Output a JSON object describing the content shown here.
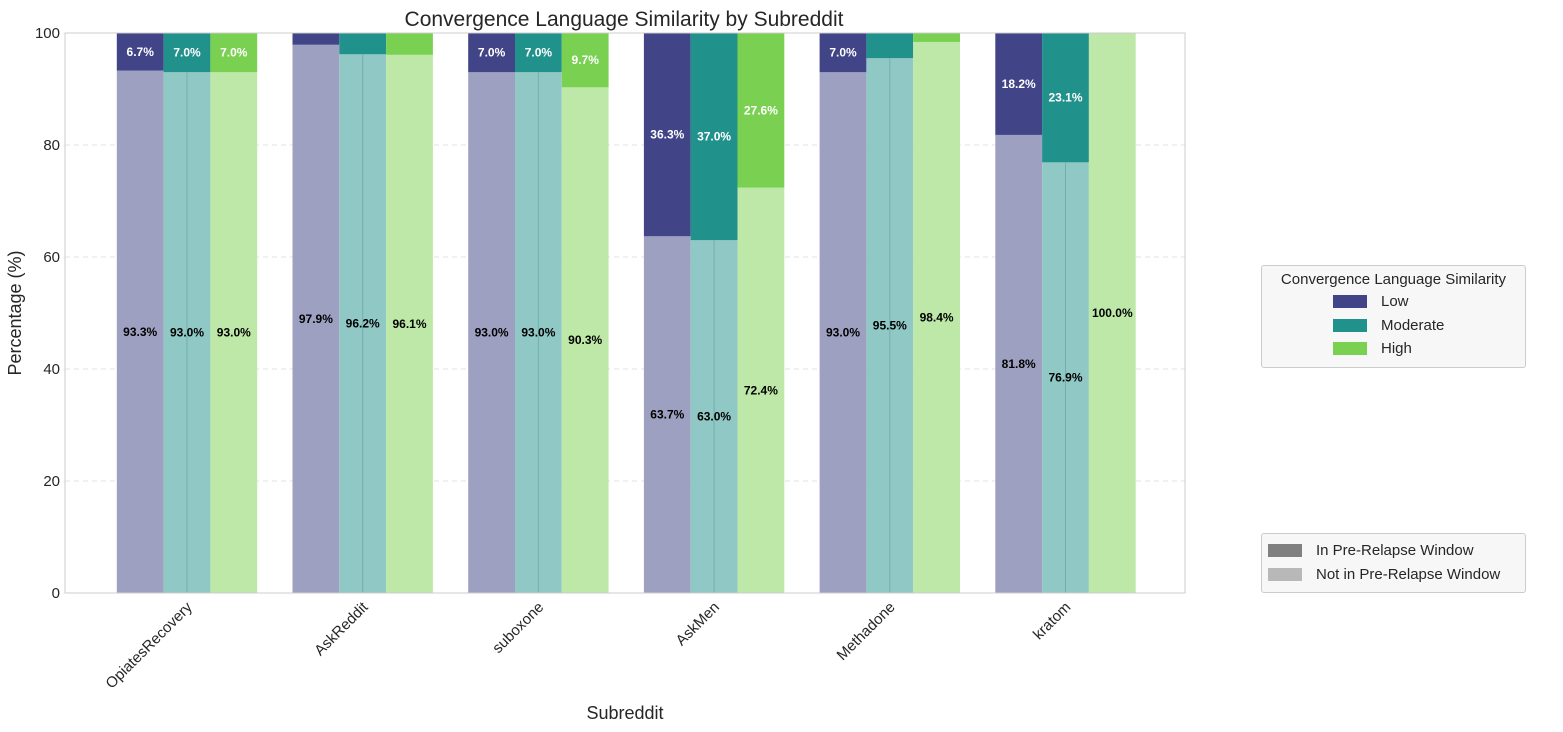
{
  "chart_data": {
    "type": "bar",
    "subtype": "stacked-grouped",
    "title": "Convergence Language Similarity by Subreddit",
    "xlabel": "Subreddit",
    "ylabel": "Percentage (%)",
    "ylim": [
      0,
      100
    ],
    "yticks": [
      "0",
      "20",
      "40",
      "60",
      "80",
      "100"
    ],
    "grid": "horizontal-dashed",
    "categories": [
      "OpiatesRecovery",
      "AskReddit",
      "suboxone",
      "AskMen",
      "Methadone",
      "kratom"
    ],
    "series": [
      {
        "name": "Low",
        "color": "#414487",
        "light_color": "#9ea0c2",
        "not_in_window": [
          93.3,
          97.9,
          93.0,
          63.7,
          93.0,
          81.8
        ],
        "in_window": [
          6.7,
          2.1,
          7.0,
          36.3,
          7.0,
          18.2
        ],
        "not_in_window_labels": [
          "93.3%",
          "97.9%",
          "93.0%",
          "63.7%",
          "93.0%",
          "81.8%"
        ],
        "in_window_labels": [
          "6.7%",
          "",
          "7.0%",
          "36.3%",
          "7.0%",
          "18.2%"
        ]
      },
      {
        "name": "Moderate",
        "color": "#21918c",
        "light_color": "#90c8c5",
        "not_in_window": [
          93.0,
          96.2,
          93.0,
          63.0,
          95.5,
          76.9
        ],
        "in_window": [
          7.0,
          3.8,
          7.0,
          37.0,
          4.5,
          23.1
        ],
        "not_in_window_labels": [
          "93.0%",
          "96.2%",
          "93.0%",
          "63.0%",
          "95.5%",
          "76.9%"
        ],
        "in_window_labels": [
          "7.0%",
          "",
          "7.0%",
          "37.0%",
          "",
          "23.1%"
        ]
      },
      {
        "name": "High",
        "color": "#7ad151",
        "light_color": "#bde8a8",
        "not_in_window": [
          93.0,
          96.1,
          90.3,
          72.4,
          98.4,
          100.0
        ],
        "in_window": [
          7.0,
          3.9,
          9.7,
          27.6,
          1.6,
          0.0
        ],
        "not_in_window_labels": [
          "93.0%",
          "96.1%",
          "90.3%",
          "72.4%",
          "98.4%",
          "100.0%"
        ],
        "in_window_labels": [
          "7.0%",
          "",
          "9.7%",
          "27.6%",
          "",
          ""
        ]
      }
    ],
    "legend_similarity": {
      "title": "Convergence Language Similarity",
      "items": [
        "Low",
        "Moderate",
        "High"
      ]
    },
    "legend_window": {
      "items": [
        {
          "label": "In Pre-Relapse Window",
          "color": "#808080"
        },
        {
          "label": "Not in Pre-Relapse Window",
          "color": "#b8b8b8"
        }
      ]
    }
  }
}
